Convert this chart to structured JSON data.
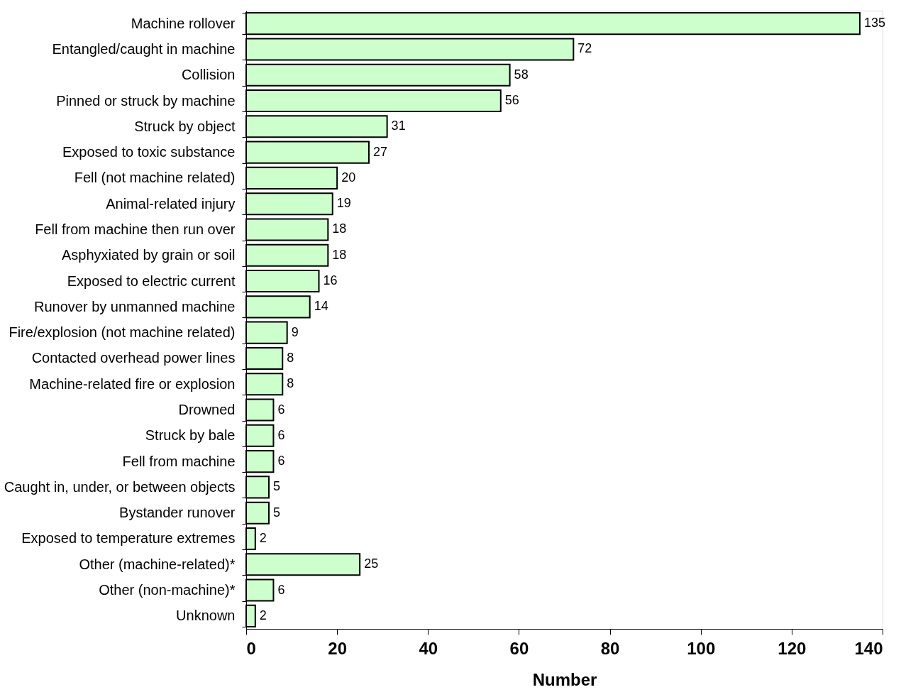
{
  "chart_data": {
    "type": "bar",
    "orientation": "horizontal",
    "xlabel": "Number",
    "categories": [
      "Machine rollover",
      "Entangled/caught in machine",
      "Collision",
      "Pinned or struck by machine",
      "Struck by object",
      "Exposed to toxic substance",
      "Fell (not machine related)",
      "Animal-related injury",
      "Fell from machine then run over",
      "Asphyxiated by grain or soil",
      "Exposed to electric current",
      "Runover by unmanned machine",
      "Fire/explosion (not machine related)",
      "Contacted overhead power lines",
      "Machine-related fire or explosion",
      "Drowned",
      "Struck by bale",
      "Fell from machine",
      "Caught in, under, or between objects",
      "Bystander runover",
      "Exposed to temperature extremes",
      "Other (machine-related)*",
      "Other (non-machine)*",
      "Unknown"
    ],
    "values": [
      135,
      72,
      58,
      56,
      31,
      27,
      20,
      19,
      18,
      18,
      16,
      14,
      9,
      8,
      8,
      6,
      6,
      6,
      5,
      5,
      2,
      25,
      6,
      2
    ],
    "color": "#ccffcc",
    "xlim": [
      0,
      140
    ],
    "xticks": [
      0,
      20,
      40,
      60,
      80,
      100,
      120,
      140
    ],
    "data_labels": true,
    "grid": false
  }
}
